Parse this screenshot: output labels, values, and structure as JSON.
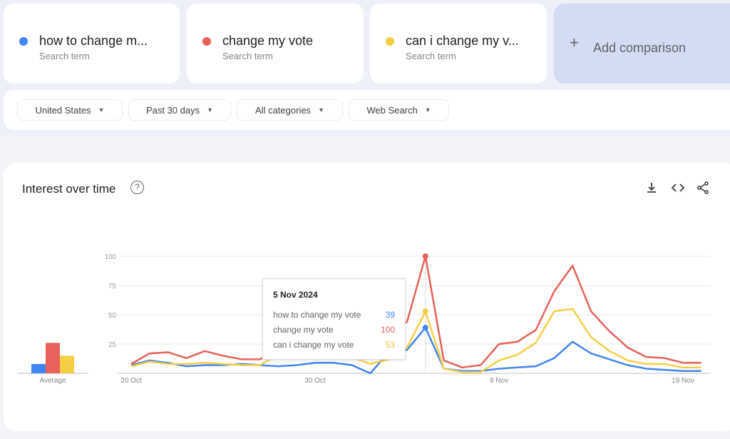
{
  "terms": [
    {
      "label": "how to change m...",
      "sub": "Search term",
      "color": "#4285f4"
    },
    {
      "label": "change my vote",
      "sub": "Search term",
      "color": "#e8615b"
    },
    {
      "label": "can i change my v...",
      "sub": "Search term",
      "color": "#f4cf44"
    }
  ],
  "add_comparison": {
    "icon": "plus-icon",
    "label": "Add comparison"
  },
  "filters": [
    "United States",
    "Past 30 days",
    "All categories",
    "Web Search"
  ],
  "panel": {
    "title": "Interest over time",
    "help_icon": "?",
    "actions": [
      "download-icon",
      "embed-icon",
      "share-icon"
    ]
  },
  "tooltip": {
    "date": "5 Nov 2024",
    "rows": [
      {
        "name": "how to change my vote",
        "value": "39"
      },
      {
        "name": "change my vote",
        "value": "100"
      },
      {
        "name": "can i change my vote",
        "value": "53"
      }
    ]
  },
  "chart_data": {
    "type": "line",
    "x_start": "20 Oct 2024",
    "x_end": "20 Nov 2024",
    "x_ticks": [
      "20 Oct",
      "30 Oct",
      "9 Nov",
      "19 Nov"
    ],
    "y_ticks": [
      "25",
      "50",
      "75",
      "100"
    ],
    "ylim": [
      0,
      100
    ],
    "grid": true,
    "series": [
      {
        "name": "how to change my vote",
        "color": "#4285f4",
        "values": [
          7,
          11,
          9,
          6,
          7,
          7,
          8,
          7,
          6,
          7,
          9,
          9,
          7,
          0,
          18,
          20,
          39,
          4,
          2,
          2,
          4,
          5,
          6,
          13,
          27,
          17,
          12,
          7,
          4,
          3,
          2,
          2
        ]
      },
      {
        "name": "change my vote",
        "color": "#e8615b",
        "values": [
          8,
          17,
          18,
          13,
          19,
          15,
          12,
          12,
          20,
          21,
          21,
          20,
          18,
          17,
          35,
          44,
          100,
          11,
          5,
          7,
          25,
          27,
          37,
          70,
          92,
          53,
          36,
          22,
          14,
          13,
          9,
          9
        ]
      },
      {
        "name": "can i change my vote",
        "color": "#f4cf44",
        "values": [
          6,
          10,
          8,
          8,
          9,
          8,
          7,
          7,
          16,
          14,
          15,
          15,
          14,
          8,
          12,
          22,
          53,
          4,
          1,
          1,
          11,
          16,
          26,
          53,
          55,
          31,
          19,
          11,
          8,
          8,
          5,
          5
        ]
      }
    ],
    "average": {
      "label": "Average",
      "values": [
        8,
        26,
        15
      ]
    },
    "highlight_index": 16
  }
}
